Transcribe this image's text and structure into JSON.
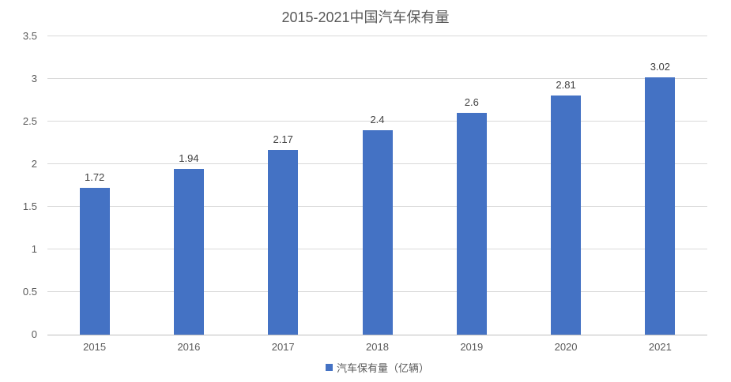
{
  "chart_data": {
    "type": "bar",
    "title": "2015-2021中国汽车保有量",
    "categories": [
      "2015",
      "2016",
      "2017",
      "2018",
      "2019",
      "2020",
      "2021"
    ],
    "values": [
      1.72,
      1.94,
      2.17,
      2.4,
      2.6,
      2.81,
      3.02
    ],
    "value_labels": [
      "1.72",
      "1.94",
      "2.17",
      "2.4",
      "2.6",
      "2.81",
      "3.02"
    ],
    "series_name": "汽车保有量（亿辆）",
    "legend_entries": [
      "汽车保有量（亿辆）"
    ],
    "legend_position": "bottom",
    "xlabel": "",
    "ylabel": "",
    "ylim": [
      0,
      3.5
    ],
    "yticks": [
      0,
      0.5,
      1,
      1.5,
      2,
      2.5,
      3,
      3.5
    ],
    "ytick_labels": [
      "0",
      "0.5",
      "1",
      "1.5",
      "2",
      "2.5",
      "3",
      "3.5"
    ],
    "grid": true
  },
  "legend": {
    "label": "汽车保有量（亿辆）"
  },
  "colors": {
    "bar": "#4472C4",
    "gridline": "#D9D9D9",
    "axis_line": "#BFBFBF",
    "title_text": "#595959",
    "tick_text": "#595959",
    "data_label_text": "#404040"
  }
}
